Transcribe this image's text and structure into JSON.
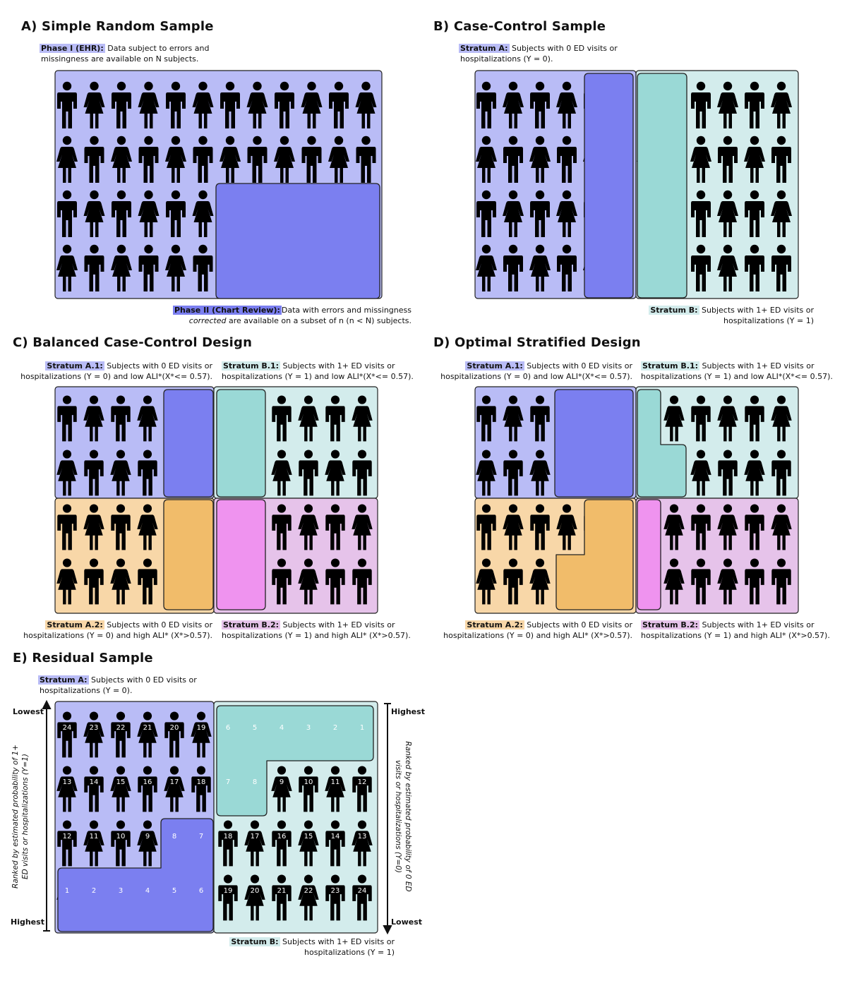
{
  "colors": {
    "lav_light": "#b9bcf6",
    "lav_dark": "#7b7ff0",
    "teal_light": "#d3ecec",
    "teal_dark": "#9ad9d6",
    "orange_light": "#f8d7a8",
    "orange_dark": "#f1bc6a",
    "pink_light": "#e6c3ea",
    "pink_dark": "#ef93ef",
    "figure": "#000000"
  },
  "icon_name": "person-icon",
  "panels": {
    "a": {
      "title": "A) Simple Random Sample",
      "phase1_tag": "Phase I (EHR):",
      "phase1_l1": "Data subject to errors and",
      "phase1_l2": "missingness are available on N subjects.",
      "phase2_tag": "Phase II (Chart Review):",
      "phase2_l1": "Data with errors and missingness",
      "phase2_l2_em": "corrected",
      "phase2_l2": " are available on a subset of n (n < N) subjects."
    },
    "b": {
      "title": "B) Case-Control Sample",
      "strA_tag": "Stratum A:",
      "strA_l1": "Subjects with 0 ED visits or",
      "strA_l2": "hospitalizations (Y = 0).",
      "strB_tag": "Stratum B:",
      "strB_l1": "Subjects with 1+ ED visits or",
      "strB_l2": "hospitalizations (Y = 1)"
    },
    "c": {
      "title": "C) Balanced Case-Control Design",
      "a1_tag": "Stratum A.1:",
      "a1_l1": "Subjects with 0 ED visits or",
      "a1_l2": "hospitalizations (Y = 0) and low ALI*(X*<= 0.57).",
      "b1_tag": "Stratum B.1:",
      "b1_l1": "Subjects with 1+ ED visits or",
      "b1_l2": "hospitalizations (Y = 1) and low ALI*(X*<= 0.57).",
      "a2_tag": "Stratum A.2:",
      "a2_l1": "Subjects with 0 ED visits or",
      "a2_l2": "hospitalizations (Y = 0) and high ALI* (X*>0.57).",
      "b2_tag": "Stratum B.2:",
      "b2_l1": "Subjects with 1+ ED visits or",
      "b2_l2": "hospitalizations (Y = 1) and high ALI* (X*>0.57)."
    },
    "d": {
      "title": "D) Optimal Stratified Design",
      "a1_tag": "Stratum A.1:",
      "a1_l1": "Subjects with 0 ED visits or",
      "a1_l2": "hospitalizations (Y = 0) and low ALI*(X*<= 0.57).",
      "b1_tag": "Stratum B.1:",
      "b1_l1": "Subjects with 1+ ED visits or",
      "b1_l2": "hospitalizations (Y = 1) and low ALI*(X*<= 0.57).",
      "a2_tag": "Stratum A.2:",
      "a2_l1": "Subjects with 0 ED visits or",
      "a2_l2": "hospitalizations (Y = 0) and high ALI* (X*>0.57).",
      "b2_tag": "Stratum B.2:",
      "b2_l1": "Subjects with 1+ ED visits or",
      "b2_l2": "hospitalizations (Y = 1) and high ALI* (X*>0.57)."
    },
    "e": {
      "title": "E) Residual Sample",
      "strA_tag": "Stratum A:",
      "strA_l1": "Subjects with 0 ED visits or",
      "strA_l2": "hospitalizations (Y = 0).",
      "strB_tag": "Stratum B:",
      "strB_l1": "Subjects with 1+ ED visits or",
      "strB_l2": "hospitalizations (Y = 1)",
      "left_axis_l1": "Ranked by estimated probability of 1+",
      "left_axis_l2": "ED visits or hospitalizations (Y=1)",
      "right_axis_l1": "Ranked by estimated probability of 0 ED",
      "right_axis_l2": "visits or hospitalizations (Y=0)",
      "left_top": "Lowest",
      "left_bottom": "Highest",
      "right_top": "Highest",
      "right_bottom": "Lowest",
      "left_ranks": [
        [
          "24",
          "23",
          "22",
          "21",
          "20",
          "19"
        ],
        [
          "13",
          "14",
          "15",
          "16",
          "17",
          "18"
        ],
        [
          "12",
          "11",
          "10",
          "9",
          "8",
          "7"
        ],
        [
          "1",
          "2",
          "3",
          "4",
          "5",
          "6"
        ]
      ],
      "right_ranks": [
        [
          "6",
          "5",
          "4",
          "3",
          "2",
          "1"
        ],
        [
          "7",
          "8",
          "9",
          "10",
          "11",
          "12"
        ],
        [
          "18",
          "17",
          "16",
          "15",
          "14",
          "13"
        ],
        [
          "19",
          "20",
          "21",
          "22",
          "23",
          "24"
        ]
      ]
    }
  }
}
